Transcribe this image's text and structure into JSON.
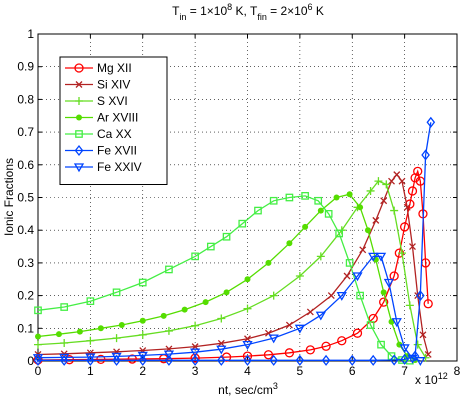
{
  "chart_data": {
    "type": "line",
    "title": {
      "parts": [
        {
          "text": "T",
          "style": "normal"
        },
        {
          "text": "in",
          "style": "sub"
        },
        {
          "text": " = 1×10",
          "style": "normal"
        },
        {
          "text": "8",
          "style": "sup"
        },
        {
          "text": " K, T",
          "style": "normal"
        },
        {
          "text": "fin",
          "style": "sub"
        },
        {
          "text": " = 2×10",
          "style": "normal"
        },
        {
          "text": "6",
          "style": "sup"
        },
        {
          "text": " K",
          "style": "normal"
        }
      ]
    },
    "xlabel": {
      "base": "nt, sec/cm",
      "sup": "3"
    },
    "ylabel": "Ionic Fractions",
    "x_exponent": {
      "base": "x 10",
      "sup": "12"
    },
    "xlim": [
      0,
      8
    ],
    "ylim": [
      0,
      1
    ],
    "xticks": [
      "0",
      "1",
      "2",
      "3",
      "4",
      "5",
      "6",
      "7",
      "8"
    ],
    "yticks": [
      "0",
      "0.1",
      "0.2",
      "0.3",
      "0.4",
      "0.5",
      "0.6",
      "0.7",
      "0.8",
      "0.9",
      "1"
    ],
    "grid": true,
    "legend_position": "top-left",
    "series": [
      {
        "name": "Mg XII",
        "color": "#ff0000",
        "marker": "circle",
        "x": [
          0,
          0.6,
          1.2,
          1.8,
          2.4,
          3.0,
          3.6,
          4.0,
          4.4,
          4.8,
          5.2,
          5.5,
          5.8,
          6.1,
          6.4,
          6.6,
          6.8,
          6.9,
          7.0,
          7.1,
          7.15,
          7.2,
          7.25,
          7.3,
          7.35,
          7.4,
          7.45
        ],
        "y": [
          0.003,
          0.004,
          0.005,
          0.006,
          0.007,
          0.009,
          0.012,
          0.015,
          0.019,
          0.025,
          0.034,
          0.045,
          0.062,
          0.085,
          0.13,
          0.18,
          0.26,
          0.33,
          0.41,
          0.48,
          0.52,
          0.56,
          0.58,
          0.55,
          0.45,
          0.3,
          0.175
        ]
      },
      {
        "name": "Si XIV",
        "color": "#b22222",
        "marker": "x",
        "x": [
          0,
          0.5,
          1.0,
          1.5,
          2.0,
          2.5,
          3.0,
          3.5,
          4.0,
          4.4,
          4.8,
          5.2,
          5.6,
          5.9,
          6.2,
          6.45,
          6.6,
          6.75,
          6.85,
          6.95,
          7.05,
          7.15,
          7.25,
          7.35,
          7.45
        ],
        "y": [
          0.02,
          0.022,
          0.025,
          0.028,
          0.032,
          0.037,
          0.044,
          0.054,
          0.068,
          0.085,
          0.11,
          0.15,
          0.2,
          0.26,
          0.34,
          0.43,
          0.49,
          0.55,
          0.57,
          0.55,
          0.47,
          0.35,
          0.2,
          0.08,
          0.02
        ]
      },
      {
        "name": "S  XVI",
        "color": "#66dd22",
        "marker": "plus",
        "x": [
          0,
          0.5,
          1.0,
          1.5,
          2.0,
          2.5,
          3.0,
          3.5,
          4.0,
          4.5,
          5.0,
          5.4,
          5.8,
          6.1,
          6.35,
          6.5,
          6.65,
          6.8,
          6.95,
          7.1,
          7.25,
          7.4
        ],
        "y": [
          0.05,
          0.055,
          0.062,
          0.07,
          0.08,
          0.092,
          0.108,
          0.13,
          0.16,
          0.2,
          0.26,
          0.32,
          0.4,
          0.47,
          0.52,
          0.55,
          0.54,
          0.46,
          0.33,
          0.17,
          0.05,
          0.01
        ]
      },
      {
        "name": "Ar XVIII",
        "color": "#55dd00",
        "marker": "dot",
        "x": [
          0,
          0.4,
          0.8,
          1.2,
          1.6,
          2.0,
          2.4,
          2.8,
          3.2,
          3.6,
          4.0,
          4.4,
          4.8,
          5.1,
          5.4,
          5.7,
          5.95,
          6.15,
          6.3,
          6.45,
          6.6,
          6.75,
          6.9,
          7.05,
          7.2
        ],
        "y": [
          0.075,
          0.082,
          0.09,
          0.1,
          0.11,
          0.123,
          0.138,
          0.157,
          0.18,
          0.21,
          0.25,
          0.3,
          0.36,
          0.41,
          0.46,
          0.5,
          0.51,
          0.47,
          0.4,
          0.31,
          0.21,
          0.12,
          0.05,
          0.015,
          0.003
        ]
      },
      {
        "name": "Ca XX",
        "color": "#44ee44",
        "marker": "square",
        "x": [
          0,
          0.5,
          1.0,
          1.5,
          2.0,
          2.5,
          3.0,
          3.3,
          3.6,
          3.9,
          4.2,
          4.5,
          4.8,
          5.1,
          5.35,
          5.55,
          5.75,
          5.95,
          6.15,
          6.35,
          6.55,
          6.75,
          6.95,
          7.1
        ],
        "y": [
          0.155,
          0.165,
          0.183,
          0.21,
          0.24,
          0.28,
          0.32,
          0.35,
          0.38,
          0.42,
          0.46,
          0.49,
          0.5,
          0.505,
          0.49,
          0.45,
          0.39,
          0.3,
          0.2,
          0.11,
          0.05,
          0.015,
          0.003,
          0.001
        ]
      },
      {
        "name": "Fe XVII",
        "color": "#0044ff",
        "marker": "diamond",
        "x": [
          0,
          0.5,
          1.0,
          1.5,
          2.0,
          2.5,
          3.0,
          3.5,
          4.0,
          4.5,
          5.0,
          5.5,
          6.0,
          6.4,
          6.8,
          7.0,
          7.2,
          7.3,
          7.4,
          7.5
        ],
        "y": [
          0.002,
          0.002,
          0.002,
          0.002,
          0.002,
          0.002,
          0.002,
          0.002,
          0.002,
          0.002,
          0.002,
          0.002,
          0.002,
          0.002,
          0.003,
          0.005,
          0.015,
          0.2,
          0.63,
          0.73
        ]
      },
      {
        "name": "Fe XXIV",
        "color": "#0044ff",
        "marker": "triangle-down",
        "x": [
          0,
          0.5,
          1.0,
          1.5,
          2.0,
          2.5,
          3.0,
          3.5,
          4.0,
          4.5,
          5.0,
          5.4,
          5.8,
          6.1,
          6.4,
          6.55,
          6.7,
          6.85,
          7.0,
          7.15,
          7.3
        ],
        "y": [
          0.01,
          0.011,
          0.012,
          0.014,
          0.017,
          0.021,
          0.027,
          0.036,
          0.05,
          0.07,
          0.1,
          0.14,
          0.2,
          0.26,
          0.32,
          0.32,
          0.24,
          0.12,
          0.04,
          0.008,
          0.001
        ]
      }
    ]
  }
}
